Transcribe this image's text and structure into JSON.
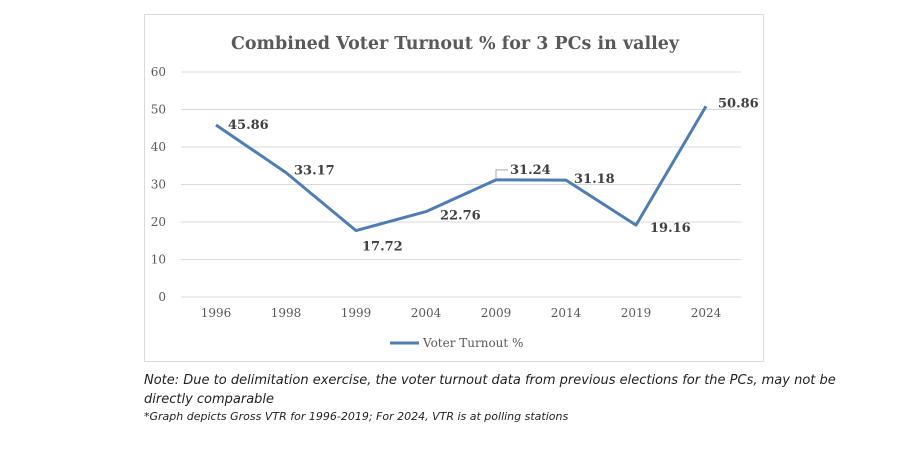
{
  "chart_data": {
    "type": "line",
    "title": "Combined Voter Turnout % for 3 PCs in valley",
    "categories": [
      "1996",
      "1998",
      "1999",
      "2004",
      "2009",
      "2014",
      "2019",
      "2024"
    ],
    "series": [
      {
        "name": "Voter Turnout %",
        "values": [
          45.86,
          33.17,
          17.72,
          22.76,
          31.24,
          31.18,
          19.16,
          50.86
        ],
        "labels": [
          "45.86",
          "33.17",
          "17.72",
          "22.76",
          "31.24",
          "31.18",
          "19.16",
          "50.86"
        ]
      }
    ],
    "yticks": [
      "0",
      "10",
      "20",
      "30",
      "40",
      "50",
      "60"
    ],
    "ylim": [
      0,
      60
    ],
    "xlabel": "",
    "ylabel": "",
    "grid": true,
    "legend": "bottom",
    "colors": {
      "line": "#4f7db3",
      "grid": "#d9d9d9"
    }
  },
  "notes": {
    "main": "Note: Due to delimitation exercise, the voter turnout data from previous elections for the PCs, may not be directly comparable",
    "sub": "*Graph depicts Gross VTR for 1996-2019; For 2024, VTR is at polling stations"
  }
}
